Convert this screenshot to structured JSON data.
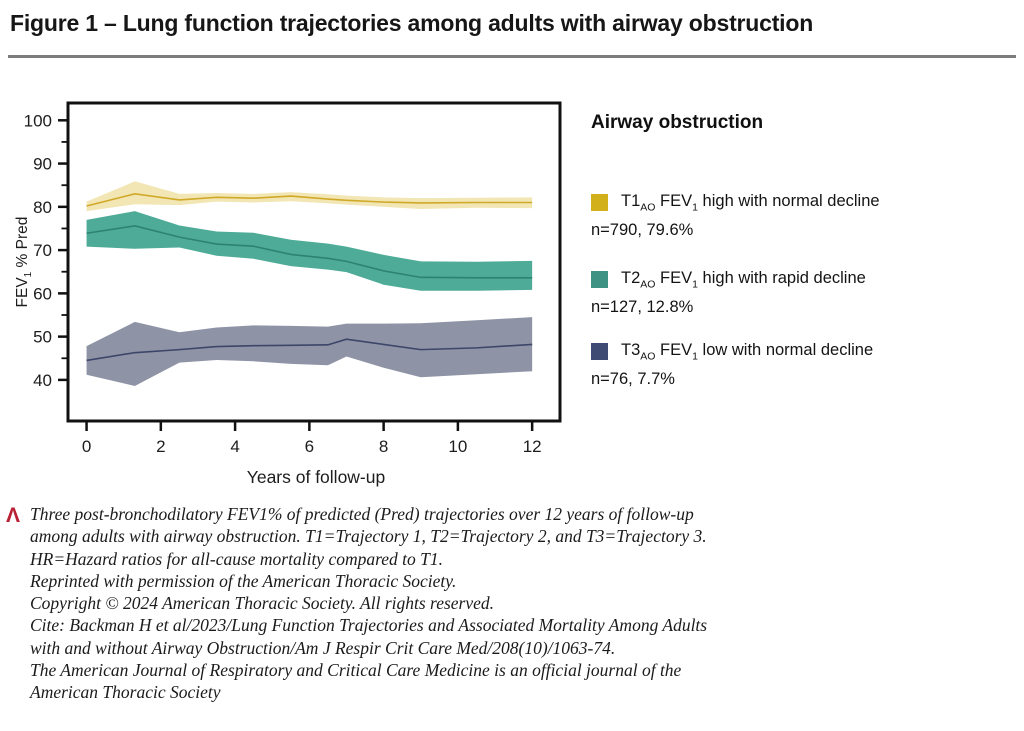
{
  "figure": {
    "title": "Figure 1 – Lung function trajectories among adults with airway obstruction"
  },
  "legend": {
    "heading": "Airway obstruction",
    "items": [
      {
        "code": "T1",
        "code_sub": "AO",
        "fev": " FEV",
        "fev_sub": "1",
        "desc": " high with normal decline",
        "n": "n=790, 79.6%",
        "color": "#d2b01c"
      },
      {
        "code": "T2",
        "code_sub": "AO",
        "fev": " FEV",
        "fev_sub": "1",
        "desc": " high with rapid decline",
        "n": "n=127, 12.8%",
        "color": "#3e9284"
      },
      {
        "code": "T3",
        "code_sub": "AO",
        "fev": " FEV",
        "fev_sub": "1",
        "desc": " low with normal decline",
        "n": "n=76, 7.7%",
        "color": "#3f4b72"
      }
    ]
  },
  "chart_data": {
    "type": "area",
    "title": "",
    "xlabel": "Years of follow-up",
    "ylabel": {
      "main": "FEV",
      "sub": "1",
      "rest": " % Pred"
    },
    "xlim": [
      -0.5,
      12.75
    ],
    "ylim": [
      30.5,
      104
    ],
    "xticks": [
      0,
      2,
      4,
      6,
      8,
      10,
      12
    ],
    "yticks": [
      40,
      50,
      60,
      70,
      80,
      90,
      100
    ],
    "yticks_minor": [
      45,
      55,
      65,
      75,
      85,
      95
    ],
    "grid": false,
    "legend_position": "right",
    "x": [
      0,
      1.3,
      2.5,
      3.5,
      4.5,
      5.5,
      6.5,
      7,
      8,
      9,
      10.5,
      12
    ],
    "series": [
      {
        "id": "T1",
        "name": "T1AO FEV1 high with normal decline (n=790, 79.6%)",
        "line_color": "#d1a929",
        "band_color": "#f2e6b4",
        "mean": [
          80.2,
          83.0,
          81.6,
          82.2,
          82.0,
          82.5,
          81.8,
          81.5,
          81.1,
          80.9,
          81.0,
          81.0
        ],
        "upper": [
          81.2,
          85.9,
          83.0,
          83.2,
          83.0,
          83.4,
          82.9,
          82.6,
          82.2,
          82.0,
          82.1,
          82.2
        ],
        "lower": [
          79.0,
          80.6,
          80.4,
          81.2,
          81.0,
          81.3,
          80.8,
          80.5,
          80.0,
          79.5,
          79.8,
          79.7
        ]
      },
      {
        "id": "T2",
        "name": "T2AO FEV1 high with rapid decline (n=127, 12.8%)",
        "line_color": "#2e8273",
        "band_color": "#4dab97",
        "mean": [
          73.9,
          75.6,
          73.0,
          71.4,
          70.9,
          69.0,
          68.1,
          67.4,
          65.2,
          63.7,
          63.6,
          63.6
        ],
        "upper": [
          77.0,
          79.0,
          75.7,
          74.3,
          74.0,
          72.4,
          71.5,
          70.8,
          68.9,
          67.4,
          67.3,
          67.5
        ],
        "lower": [
          70.8,
          70.3,
          70.6,
          68.7,
          68.0,
          66.3,
          65.5,
          64.9,
          62.0,
          60.6,
          60.6,
          60.8
        ]
      },
      {
        "id": "T3",
        "name": "T3AO FEV1 low with normal decline (n=76, 7.7%)",
        "line_color": "#3c4668",
        "band_color": "#8f93a6",
        "mean": [
          44.5,
          46.3,
          47.0,
          47.7,
          47.9,
          48.0,
          48.1,
          49.4,
          48.2,
          47.0,
          47.4,
          48.2
        ],
        "upper": [
          47.8,
          53.4,
          51.0,
          52.1,
          52.6,
          52.5,
          52.3,
          53.0,
          53.0,
          53.1,
          53.8,
          54.5
        ],
        "lower": [
          41.2,
          38.6,
          44.0,
          44.6,
          44.3,
          43.7,
          43.4,
          45.4,
          42.8,
          40.6,
          41.3,
          42.0
        ]
      }
    ]
  },
  "caption": {
    "marker": "Λ",
    "lines": [
      "Three post-bronchodilatory FEV1% of predicted (Pred) trajectories over 12 years of follow-up",
      "among adults with airway obstruction. T1=Trajectory 1, T2=Trajectory 2, and T3=Trajectory 3.",
      "HR=Hazard ratios for all-cause mortality compared to T1.",
      "Reprinted with permission of the American Thoracic Society.",
      "Copyright © 2024 American Thoracic Society. All rights reserved.",
      "Cite: Backman H et al/2023/Lung Function Trajectories and Associated Mortality Among Adults",
      "with and without Airway Obstruction/Am J Respir Crit Care Med/208(10)/1063-74.",
      "The American Journal of Respiratory and Critical Care Medicine is an official journal of the",
      "American Thoracic Society"
    ]
  }
}
